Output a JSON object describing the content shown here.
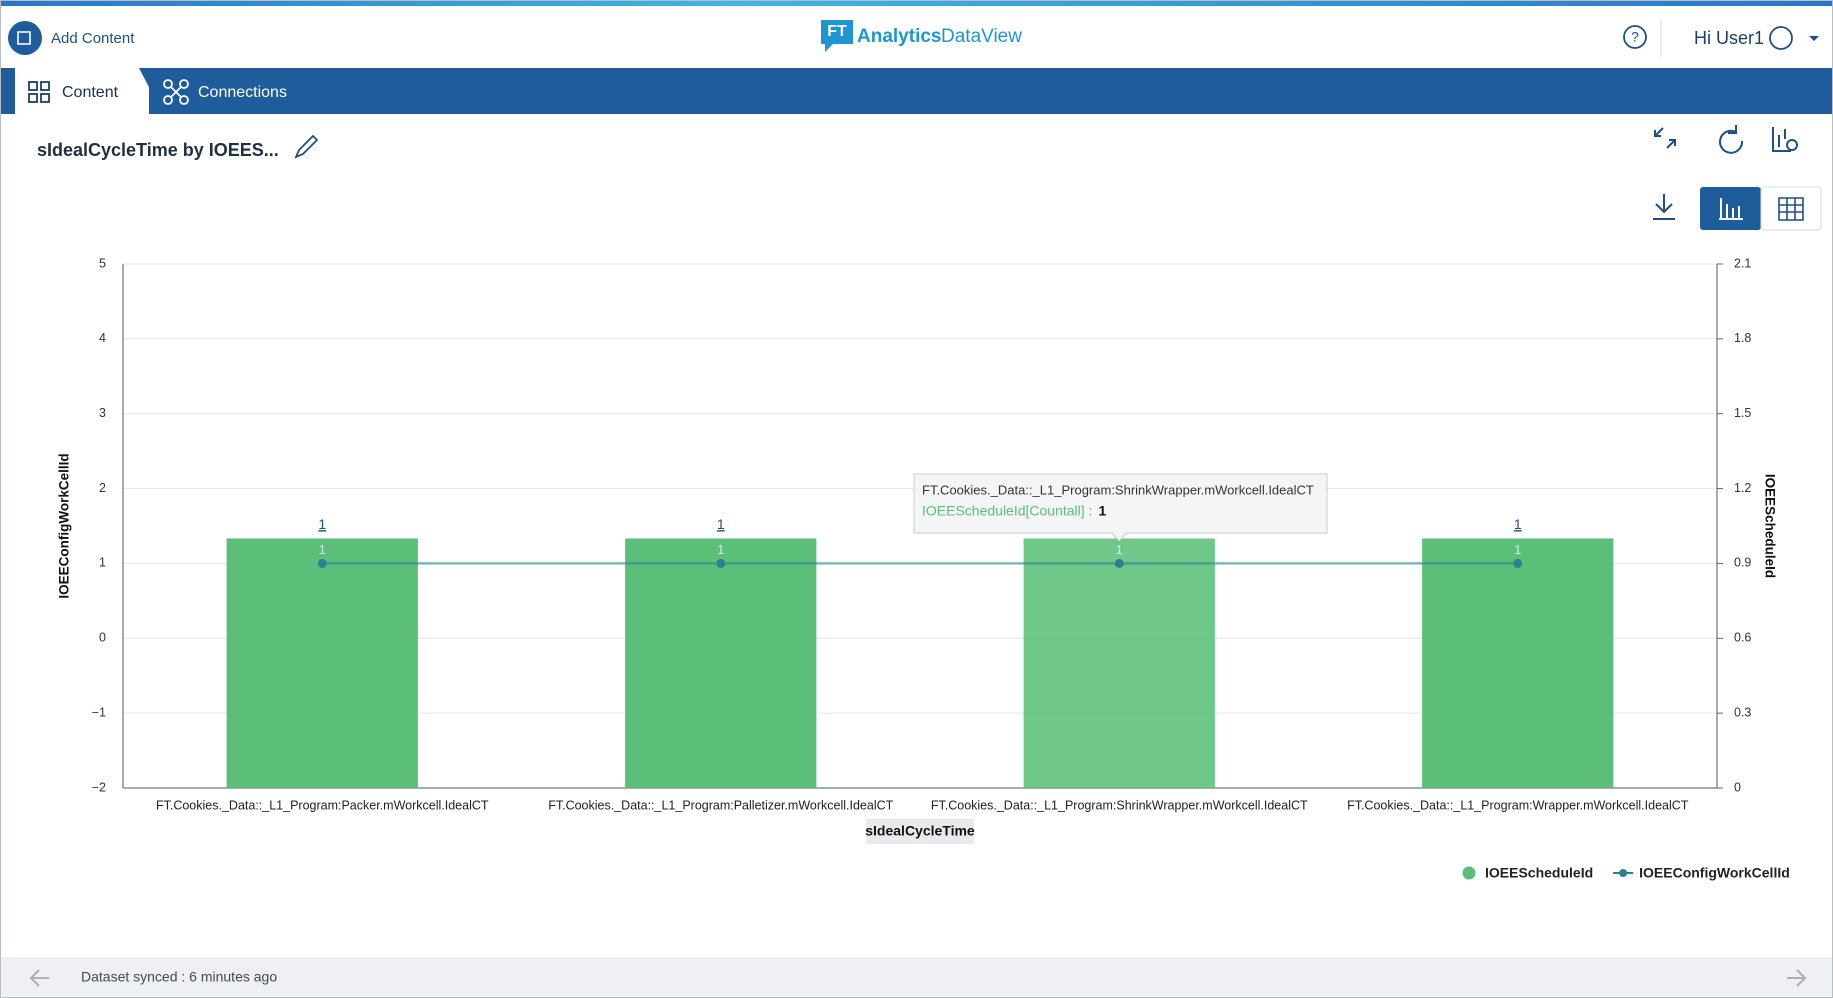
{
  "header": {
    "add_content": "Add Content",
    "logo_mark": "FT",
    "logo_name": "Analytics",
    "logo_product": "DataView",
    "user": "Hi User1"
  },
  "tabs": [
    "Content",
    "Connections"
  ],
  "panel_title": "sIdealCycleTime by IOEES...",
  "tooltip": {
    "label": "IOEEScheduleId[Countall] :"
  },
  "footer": {
    "status": "Dataset synced : 6 minutes ago"
  },
  "chart_data": {
    "type": "bar",
    "categories": [
      "FT.Cookies._Data::_L1_Program:Packer.mWorkcell.IdealCT",
      "FT.Cookies._Data::_L1_Program:Palletizer.mWorkcell.IdealCT",
      "FT.Cookies._Data::_L1_Program:ShrinkWrapper.mWorkcell.IdealCT",
      "FT.Cookies._Data::_L1_Program:Wrapper.mWorkcell.IdealCT"
    ],
    "x_label": "sIdealCycleTime",
    "y_label": "IOEEConfigWorkCellId",
    "y2_label": "IOEEScheduleId",
    "series": [
      {
        "name": "IOEEScheduleId",
        "type": "bar",
        "axis": "y2",
        "color": "#5bbf7a",
        "values": [
          1,
          1,
          1,
          1
        ]
      },
      {
        "name": "IOEEConfigWorkCellId",
        "type": "line",
        "axis": "y",
        "color": "#2a8191",
        "values": [
          1,
          1,
          1,
          1
        ]
      }
    ],
    "ylim": [
      -2,
      5
    ],
    "yticks": [
      {
        "value": -2,
        "label": "−2"
      },
      {
        "value": -1,
        "label": "−1"
      },
      0,
      1,
      2,
      3,
      4,
      5
    ],
    "y2lim": [
      0,
      2.1
    ],
    "y2ticks": [
      0,
      0.3,
      0.6,
      0.9,
      1.2,
      1.5,
      1.8,
      2.1
    ],
    "grid": true,
    "legend": "bottom-right"
  }
}
